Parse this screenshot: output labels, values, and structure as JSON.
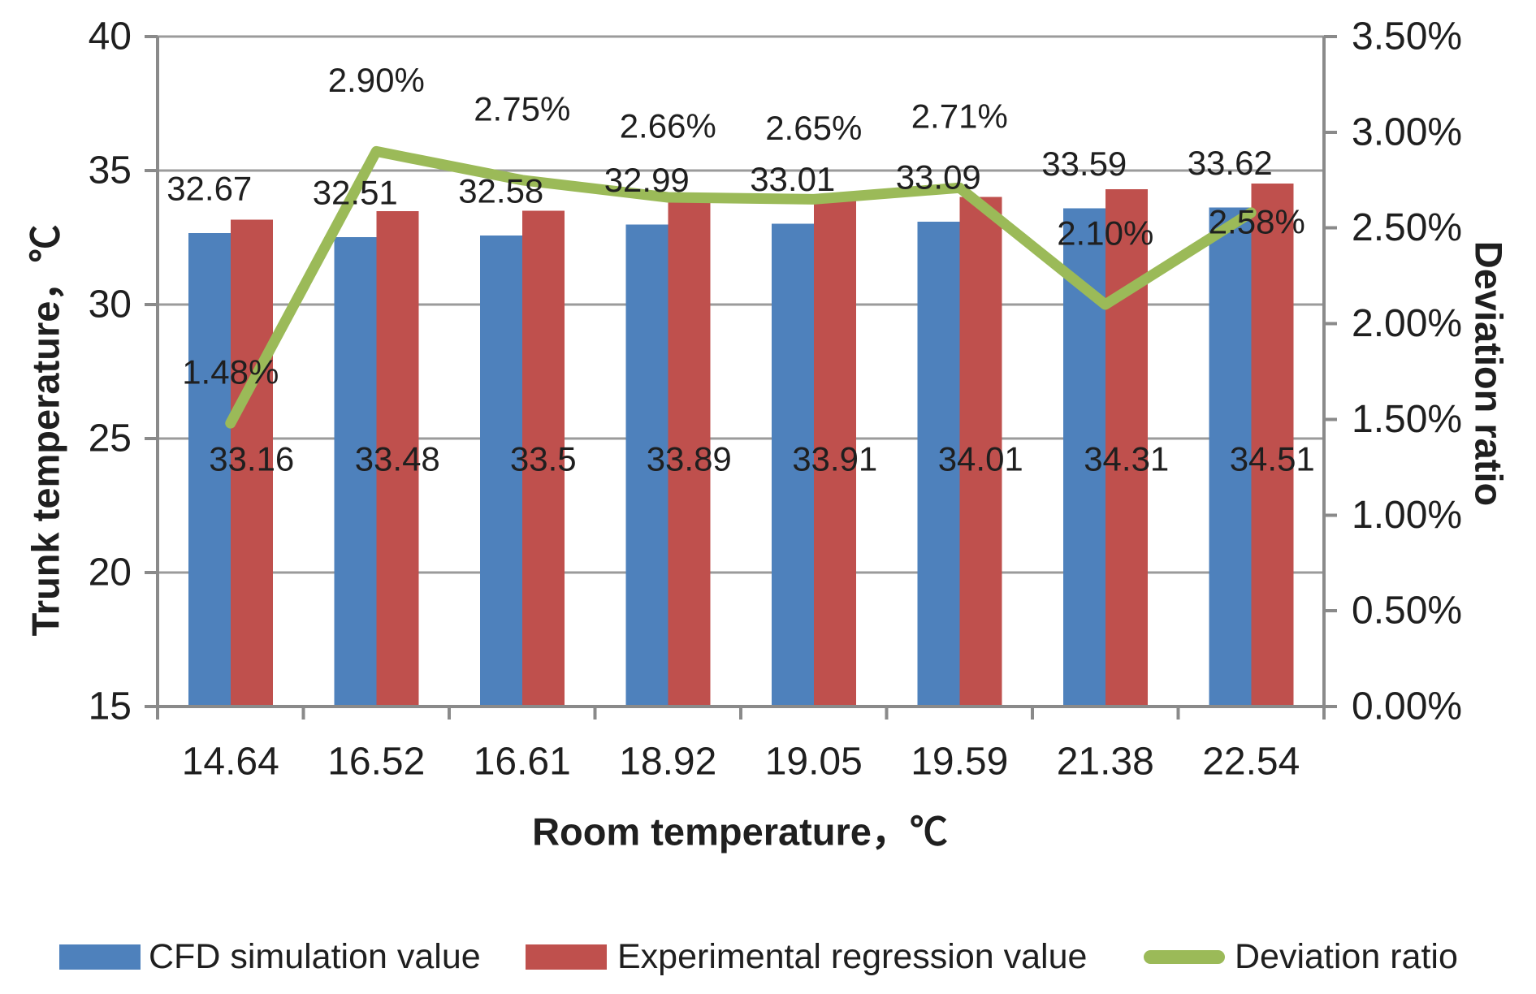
{
  "figure": {
    "background": "#FFFFFF"
  },
  "chart_data": {
    "type": "bar+line",
    "categories": [
      "14.64",
      "16.52",
      "16.61",
      "18.92",
      "19.05",
      "19.59",
      "21.38",
      "22.54"
    ],
    "series": [
      {
        "name": "CFD simulation value",
        "type": "bar",
        "axis": "left",
        "color": "#4E81BC",
        "values": [
          32.67,
          32.51,
          32.58,
          32.99,
          33.01,
          33.09,
          33.59,
          33.62
        ],
        "value_labels": [
          "32.67",
          "32.51",
          "32.58",
          "32.99",
          "33.01",
          "33.09",
          "33.59",
          "33.62"
        ]
      },
      {
        "name": "Experimental regression value",
        "type": "bar",
        "axis": "left",
        "color": "#BF504D",
        "values": [
          33.16,
          33.48,
          33.5,
          33.89,
          33.91,
          34.01,
          34.31,
          34.51
        ],
        "value_labels": [
          "33.16",
          "33.48",
          "33.5",
          "33.89",
          "33.91",
          "34.01",
          "34.31",
          "34.51"
        ]
      },
      {
        "name": "Deviation ratio",
        "type": "line",
        "axis": "right",
        "color": "#9BBA58",
        "values": [
          1.48,
          2.9,
          2.75,
          2.66,
          2.65,
          2.71,
          2.1,
          2.58
        ],
        "value_labels": [
          "1.48%",
          "2.90%",
          "2.75%",
          "2.66%",
          "2.65%",
          "2.71%",
          "2.10%",
          "2.58%"
        ]
      }
    ],
    "x_axis": {
      "title": "Room temperature，℃"
    },
    "left_axis": {
      "title": "Trunk temperature，℃",
      "min": 15,
      "max": 40,
      "step": 5,
      "tick_labels": [
        "15",
        "20",
        "25",
        "30",
        "35",
        "40"
      ]
    },
    "right_axis": {
      "title": "Deviation ratio",
      "min": 0,
      "max": 3.5,
      "step": 0.5,
      "tick_labels": [
        "0.00%",
        "0.50%",
        "1.00%",
        "1.50%",
        "2.00%",
        "2.50%",
        "3.00%",
        "3.50%"
      ]
    },
    "grid": true,
    "legend_position": "bottom",
    "colors": {
      "gridline": "#9B9B9B",
      "axis_line": "#8A8A8A",
      "label_text": "#1F1F1F"
    }
  }
}
